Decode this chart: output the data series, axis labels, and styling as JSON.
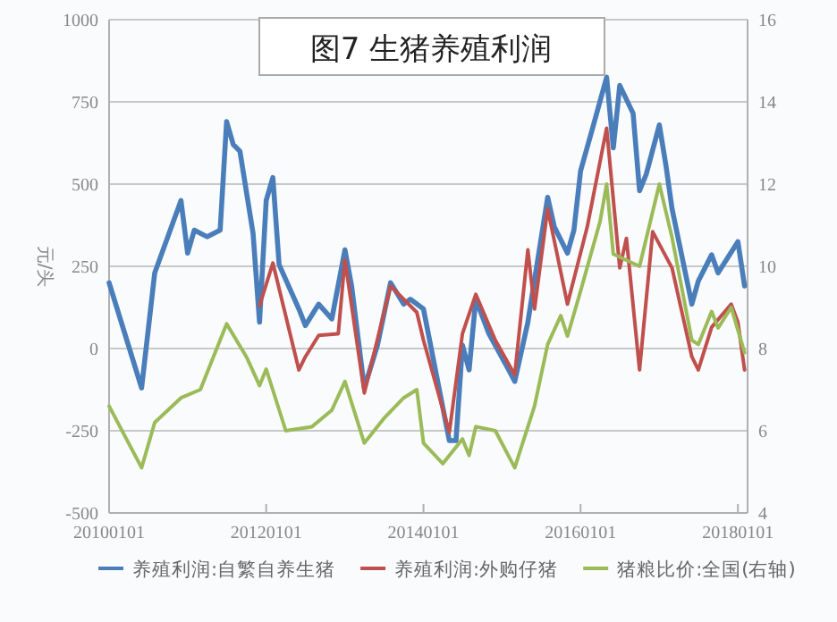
{
  "chart_data": {
    "type": "line",
    "title": "图7 生猪养殖利润",
    "ylabel": "元/头",
    "xlim": [
      "2010-01-01",
      "2018-02-15"
    ],
    "xticks": [
      {
        "value": "2010-01-01",
        "label": "20100101"
      },
      {
        "value": "2012-01-01",
        "label": "20120101"
      },
      {
        "value": "2014-01-01",
        "label": "20140101"
      },
      {
        "value": "2016-01-01",
        "label": "20160101"
      },
      {
        "value": "2018-01-01",
        "label": "20180101"
      }
    ],
    "ylim": [
      -500,
      1000
    ],
    "yticks": [
      -500,
      -250,
      0,
      250,
      500,
      750,
      1000
    ],
    "y2lim": [
      4,
      16
    ],
    "y2ticks": [
      4,
      6,
      8,
      10,
      12,
      14,
      16
    ],
    "grid": "y",
    "legend": "bottom",
    "line_style": "solid",
    "marker": "none",
    "series": [
      {
        "name": "养殖利润:自繁自养生猪",
        "color": "#4a7ebb",
        "x": [
          "2010-01",
          "2010-06",
          "2010-08",
          "2010-12",
          "2011-01",
          "2011-02",
          "2011-04",
          "2011-06",
          "2011-07",
          "2011-08",
          "2011-09",
          "2011-11",
          "2011-12",
          "2012-01",
          "2012-02",
          "2012-03",
          "2012-06",
          "2012-07",
          "2012-09",
          "2012-11",
          "2013-01",
          "2013-02",
          "2013-04",
          "2013-06",
          "2013-08",
          "2013-10",
          "2013-11",
          "2014-01",
          "2014-05",
          "2014-06",
          "2014-07",
          "2014-08",
          "2014-09",
          "2014-11",
          "2015-02",
          "2015-03",
          "2015-05",
          "2015-08",
          "2015-09",
          "2015-11",
          "2015-12",
          "2016-01",
          "2016-03",
          "2016-05",
          "2016-06",
          "2016-07",
          "2016-09",
          "2016-10",
          "2016-11",
          "2017-01",
          "2017-02",
          "2017-03",
          "2017-06",
          "2017-07",
          "2017-09",
          "2017-10",
          "2018-01",
          "2018-02"
        ],
        "values": [
          200,
          -120,
          230,
          450,
          290,
          360,
          340,
          360,
          690,
          620,
          600,
          350,
          80,
          450,
          520,
          255,
          120,
          70,
          135,
          90,
          300,
          190,
          -120,
          10,
          200,
          135,
          150,
          120,
          -280,
          -280,
          10,
          -65,
          150,
          45,
          -65,
          -100,
          80,
          460,
          370,
          290,
          360,
          540,
          680,
          825,
          610,
          800,
          715,
          480,
          530,
          680,
          555,
          425,
          135,
          205,
          285,
          230,
          325,
          190
        ]
      },
      {
        "name": "养殖利润:外购仔猪",
        "color": "#c0504d",
        "x": [
          "2011-12",
          "2012-02",
          "2012-06",
          "2012-07",
          "2012-09",
          "2012-12",
          "2013-01",
          "2013-04",
          "2013-08",
          "2013-12",
          "2014-01",
          "2014-05",
          "2014-07",
          "2014-09",
          "2014-12",
          "2015-03",
          "2015-05",
          "2015-06",
          "2015-08",
          "2015-11",
          "2016-02",
          "2016-05",
          "2016-07",
          "2016-08",
          "2016-10",
          "2016-12",
          "2017-03",
          "2017-06",
          "2017-07",
          "2017-09",
          "2017-12",
          "2018-01",
          "2018-02"
        ],
        "values": [
          130,
          260,
          -65,
          -25,
          40,
          45,
          270,
          -135,
          190,
          110,
          25,
          -255,
          45,
          165,
          25,
          -80,
          300,
          120,
          425,
          135,
          370,
          670,
          245,
          335,
          -65,
          355,
          245,
          -25,
          -65,
          65,
          135,
          80,
          -65
        ]
      },
      {
        "name": "猪粮比价:全国(右轴)",
        "color": "#9bbb59",
        "axis": "y2",
        "x": [
          "2010-01",
          "2010-06",
          "2010-08",
          "2010-12",
          "2011-03",
          "2011-07",
          "2011-10",
          "2011-12",
          "2012-01",
          "2012-04",
          "2012-08",
          "2012-11",
          "2013-01",
          "2013-04",
          "2013-07",
          "2013-10",
          "2013-12",
          "2014-01",
          "2014-04",
          "2014-07",
          "2014-08",
          "2014-09",
          "2014-12",
          "2015-03",
          "2015-06",
          "2015-08",
          "2015-10",
          "2015-11",
          "2016-01",
          "2016-04",
          "2016-05",
          "2016-06",
          "2016-10",
          "2017-01",
          "2017-03",
          "2017-06",
          "2017-07",
          "2017-09",
          "2017-10",
          "2017-12",
          "2018-02"
        ],
        "values": [
          6.6,
          5.1,
          6.2,
          6.8,
          7.0,
          8.6,
          7.8,
          7.1,
          7.5,
          6.0,
          6.1,
          6.5,
          7.2,
          5.7,
          6.3,
          6.8,
          7.0,
          5.7,
          5.2,
          5.8,
          5.4,
          6.1,
          6.0,
          5.1,
          6.6,
          8.1,
          8.8,
          8.3,
          9.4,
          11.1,
          12.0,
          10.3,
          10.0,
          12.0,
          10.7,
          8.2,
          8.1,
          8.9,
          8.5,
          9.0,
          7.9
        ]
      }
    ]
  }
}
